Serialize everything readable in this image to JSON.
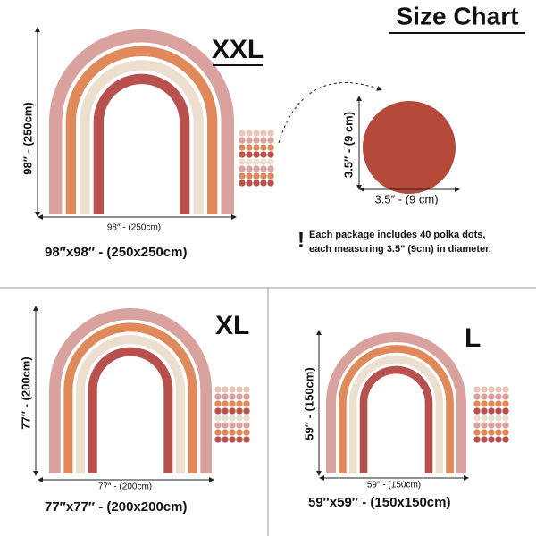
{
  "header": {
    "title": "Size Chart"
  },
  "sizes": [
    {
      "label": "XXL",
      "height": "98″ - (250cm)",
      "width": "98″ - (250cm)",
      "dimensions": "98″x98″ - (250x250cm)"
    },
    {
      "label": "XL",
      "height": "77″ - (200cm)",
      "width": "77″ - (200cm)",
      "dimensions": "77″x77″ - (200x200cm)"
    },
    {
      "label": "L",
      "height": "59″ - (150cm)",
      "width": "59″ - (150cm)",
      "dimensions": "59″x59″ - (150x150cm)"
    }
  ],
  "dot": {
    "height": "3.5″ - (9 cm)",
    "width": "3.5″ - (9 cm)"
  },
  "note": {
    "mark": "!",
    "lines": [
      "Each package includes 40 polka dots,",
      "each measuring 3.5\" (9cm) in diameter."
    ]
  }
}
